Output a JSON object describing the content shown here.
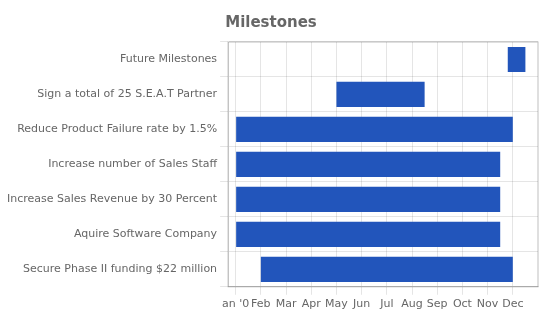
{
  "chart_data": {
    "type": "bar",
    "orientation": "horizontal",
    "title": "Milestones",
    "categories": [
      "Secure Phase II funding $22 million",
      "Aquire Software Company",
      "Increase Sales Revenue by 30 Percent",
      "Increase number of Sales Staff",
      "Reduce Product Failure rate by 1.5%",
      "Sign a total of 25 S.E.A.T Partner",
      "Future Milestones"
    ],
    "values": [
      [
        1.0,
        11.0
      ],
      [
        0.0,
        10.5
      ],
      [
        0.0,
        10.5
      ],
      [
        0.0,
        10.5
      ],
      [
        0.0,
        11.0
      ],
      [
        4.0,
        7.5
      ],
      [
        10.8,
        11.5
      ]
    ],
    "color": "#2255BB",
    "xlim": [
      -0.3,
      12.0
    ],
    "xticks": [
      {
        "value": 0,
        "label": "an '0"
      },
      {
        "value": 1,
        "label": "Feb"
      },
      {
        "value": 2,
        "label": "Mar"
      },
      {
        "value": 3,
        "label": "Apr"
      },
      {
        "value": 4,
        "label": "May"
      },
      {
        "value": 5,
        "label": "Jun"
      },
      {
        "value": 6,
        "label": "Jul"
      },
      {
        "value": 7,
        "label": "Aug"
      },
      {
        "value": 8,
        "label": "Sep"
      },
      {
        "value": 9,
        "label": "Oct"
      },
      {
        "value": 10,
        "label": "Nov"
      },
      {
        "value": 11,
        "label": "Dec"
      }
    ],
    "grid": true
  }
}
